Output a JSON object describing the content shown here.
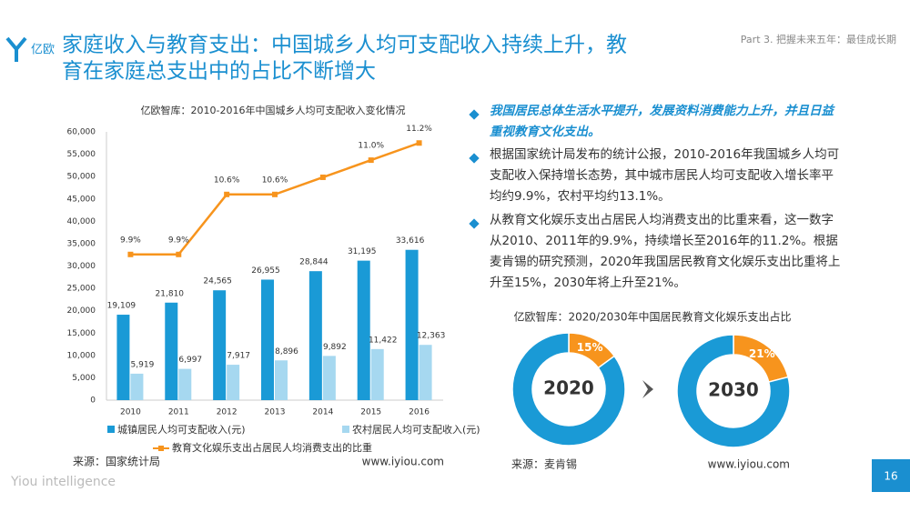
{
  "header": {
    "logo": "亿欧",
    "title_line1": "家庭收入与教育支出：中国城乡人均可支配收入持续上升，教",
    "title_line2": "育在家庭总支出中的占比不断增大",
    "part": "Part 3. 把握未来五年：最佳成长期"
  },
  "chart_data": [
    {
      "type": "bar",
      "title": "亿欧智库：2010-2016年中国城乡人均可支配收入变化情况",
      "categories": [
        "2010",
        "2011",
        "2012",
        "2013",
        "2014",
        "2015",
        "2016"
      ],
      "series": [
        {
          "name": "城镇居民人均可支配收入(元)",
          "color": "#1a9ad6",
          "values": [
            19109,
            21810,
            24565,
            26955,
            28844,
            31195,
            33616
          ],
          "value_labels": [
            "19,109",
            "21,810",
            "24,565",
            "26,955",
            "28,844",
            "31,195",
            "33,616"
          ]
        },
        {
          "name": "农村居民人均可支配收入(元)",
          "color": "#a6d8f0",
          "values": [
            5919,
            6997,
            7917,
            8896,
            9892,
            11422,
            12363
          ],
          "value_labels": [
            "5,919",
            "6,997",
            "7,917",
            "8,896",
            "9,892",
            "11,422",
            "12,363"
          ]
        },
        {
          "name": "教育文化娱乐支出占居民人均消费支出的比重",
          "color": "#f7941d",
          "type": "line",
          "axis": "y2",
          "values": [
            9.9,
            9.9,
            10.6,
            10.6,
            10.8,
            11.0,
            11.2
          ],
          "value_labels": [
            "9.9%",
            "9.9%",
            "10.6%",
            "10.6%",
            null,
            "11.0%",
            "11.2%"
          ]
        }
      ],
      "ylim": [
        0,
        60000
      ],
      "yticks": [
        0,
        {
          "value": 5000,
          "label": "5,000"
        },
        {
          "value": 10000,
          "label": "10,000"
        },
        {
          "value": 15000,
          "label": "15,000"
        },
        {
          "value": 20000,
          "label": "20,000"
        },
        {
          "value": 25000,
          "label": "25,000"
        },
        {
          "value": 30000,
          "label": "30,000"
        },
        {
          "value": 35000,
          "label": "35,000"
        },
        {
          "value": 40000,
          "label": "40,000"
        },
        {
          "value": 45000,
          "label": "45,000"
        },
        {
          "value": 50000,
          "label": "50,000"
        },
        {
          "value": 55000,
          "label": "55,000"
        },
        {
          "value": 60000,
          "label": "60,000"
        }
      ],
      "y2lim": [
        8.2,
        11.33
      ],
      "source": "来源：国家统计局",
      "site": "www.iyiou.com"
    },
    {
      "type": "pie",
      "title": "2020",
      "values": [
        15,
        85
      ],
      "value_labels": [
        "15%",
        null
      ],
      "colors": [
        "#f7941d",
        "#1a9ad6"
      ]
    },
    {
      "type": "pie",
      "title": "2030",
      "values": [
        21,
        79
      ],
      "value_labels": [
        "21%",
        null
      ],
      "colors": [
        "#f7941d",
        "#1a9ad6"
      ]
    }
  ],
  "donut_title": "亿欧智库：2020/2030年中国居民教育文化娱乐支出占比",
  "donut_source": "来源：麦肯锡",
  "donut_site": "www.iyiou.com",
  "bullets": [
    "我国居民总体生活水平提升，发展资料消费能力上升，并且日益重视教育文化支出。",
    "根据国家统计局发布的统计公报，2010-2016年我国城乡人均可支配收入保持增长态势，其中城市居民人均可支配收入增长率平均约9.9%，农村平均约13.1%。",
    "从教育文化娱乐支出占居民人均消费支出的比重来看，这一数字从2010、2011年的9.9%，持续增长至2016年的11.2%。根据麦肯锡的研究预测，2020年我国居民教育文化娱乐支出比重将上升至15%，2030年将上升至21%。"
  ],
  "footer": {
    "brand": "Yiou intelligence",
    "page": "16"
  }
}
